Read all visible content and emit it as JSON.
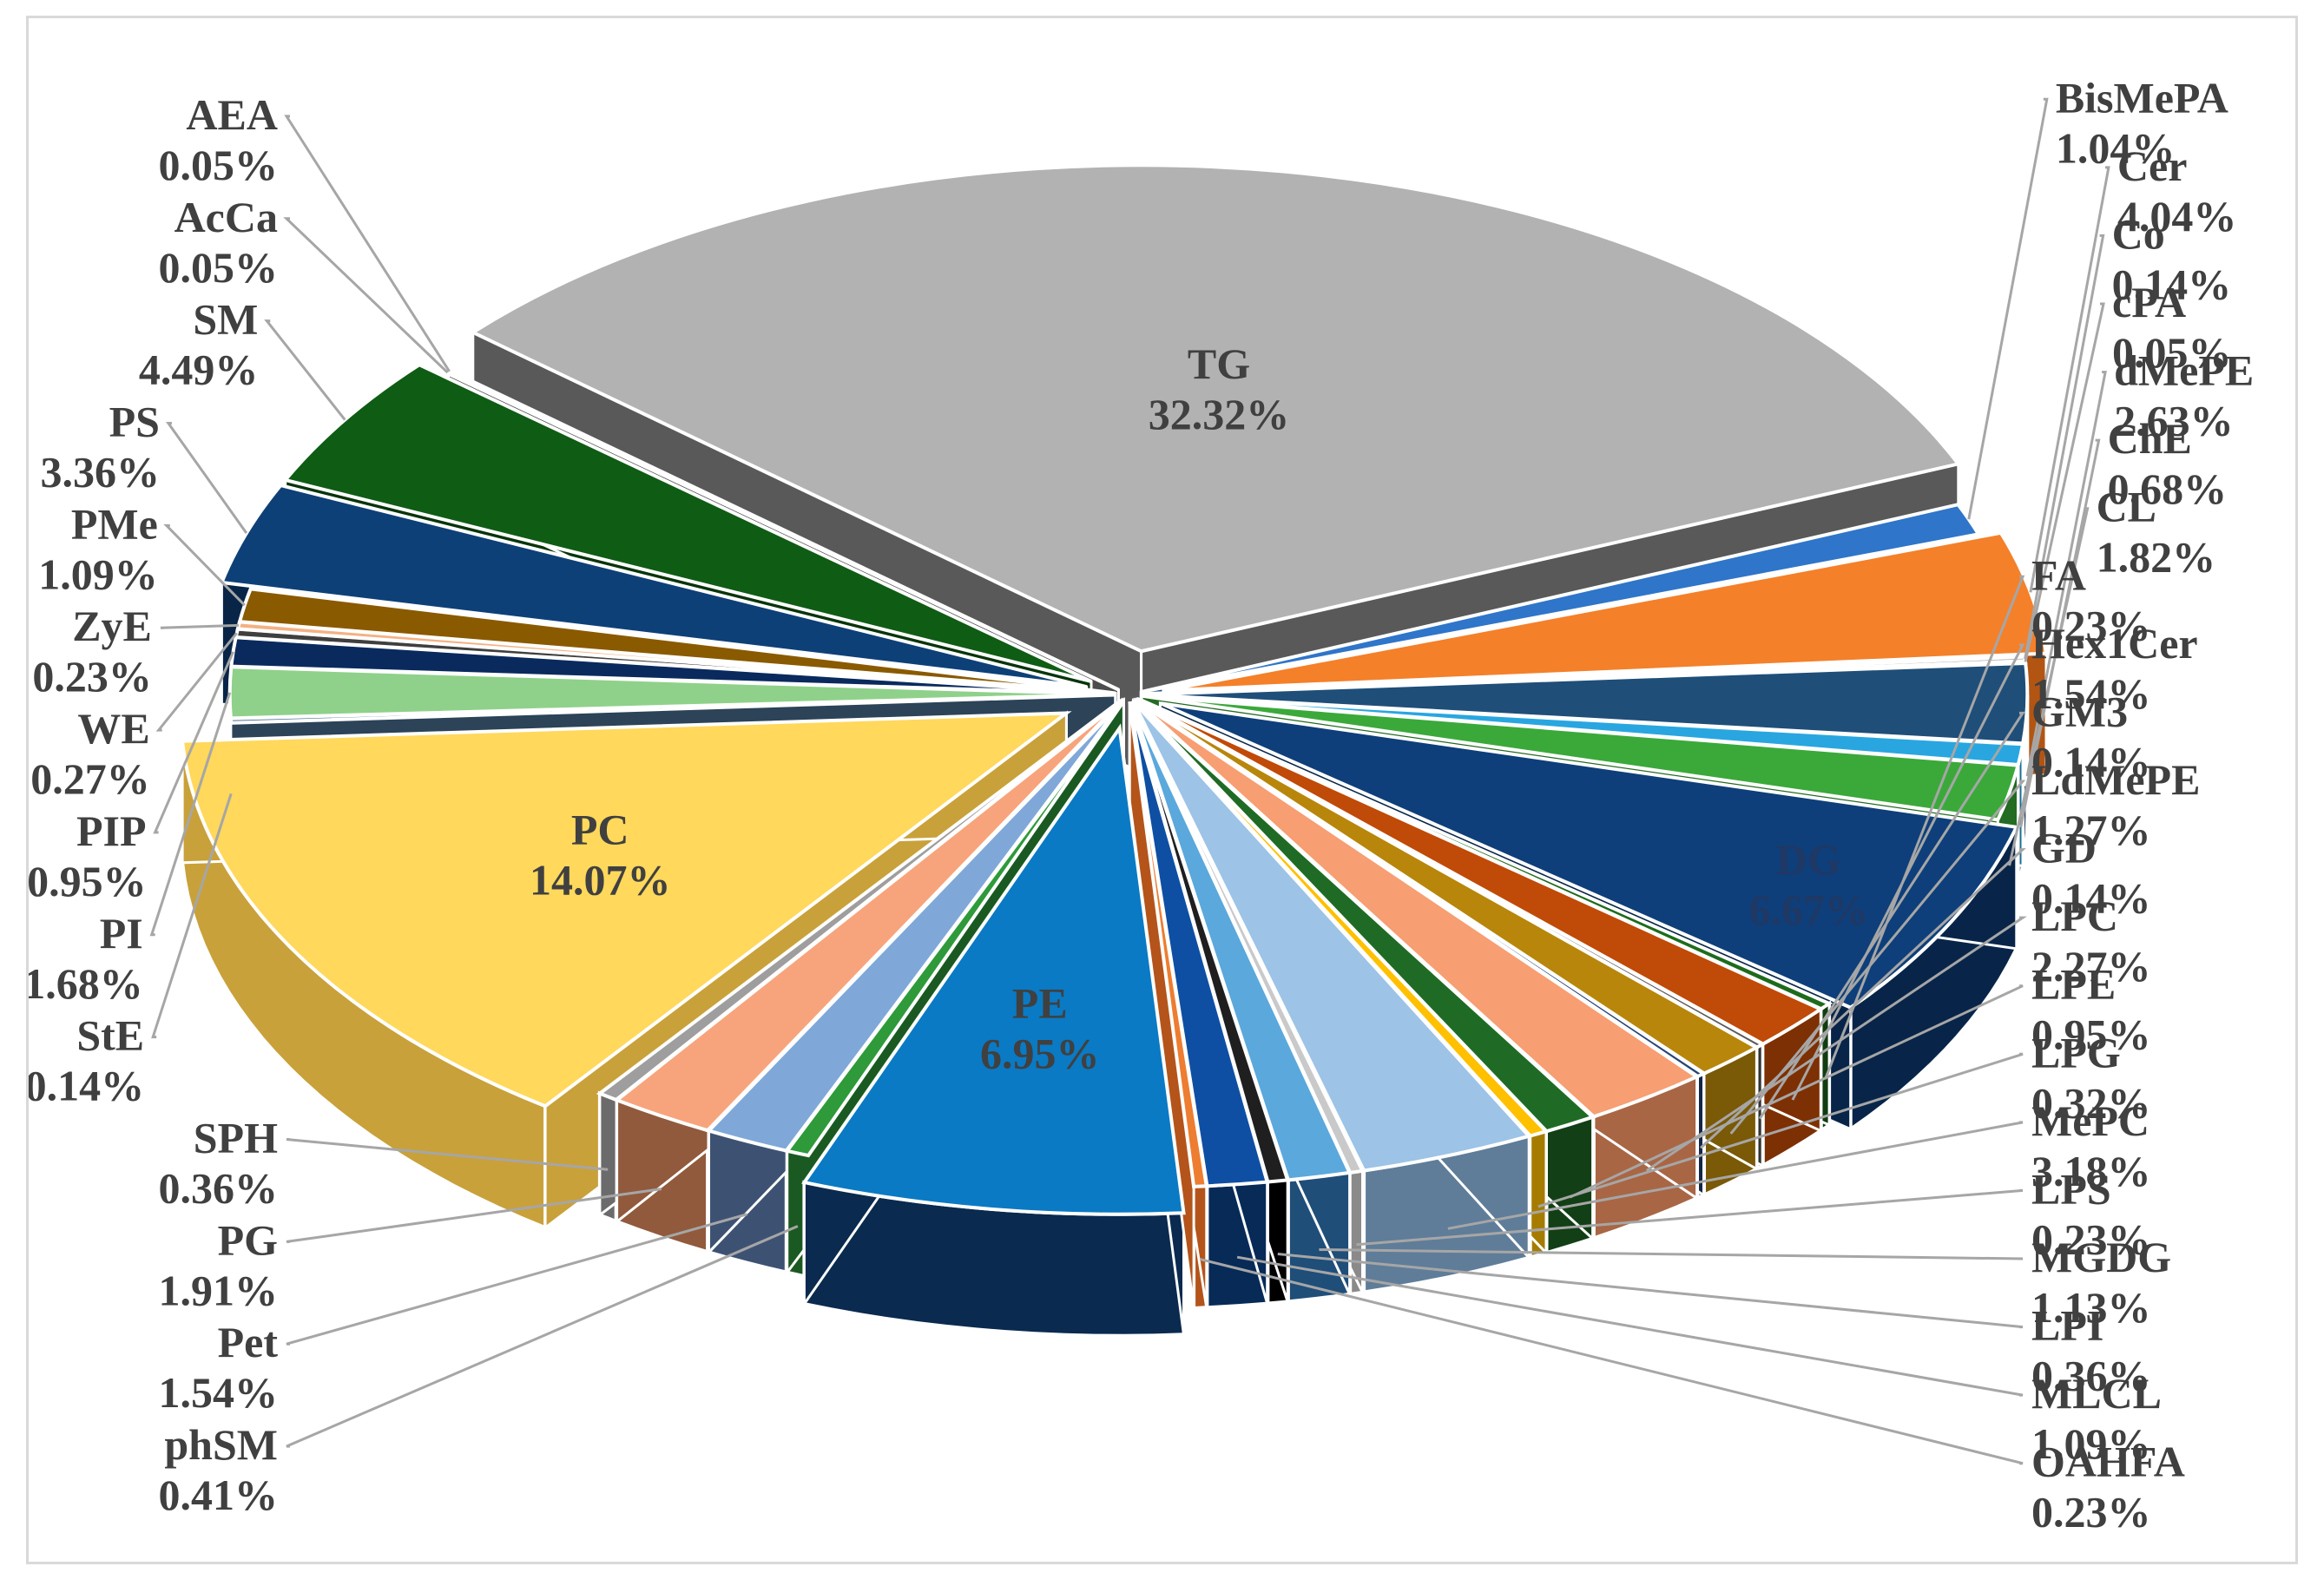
{
  "chart_data": {
    "type": "pie",
    "title": "",
    "unit": "%",
    "slices": [
      {
        "name": "TG",
        "value": 32.32,
        "pct": "32.32%",
        "color": "#b2b2b2",
        "side": "#595959"
      },
      {
        "name": "BisMePA",
        "value": 1.04,
        "pct": "1.04%",
        "color": "#2f75c9",
        "side": "#1f4e8a"
      },
      {
        "name": "Cer",
        "value": 4.04,
        "pct": "4.04%",
        "color": "#f4802a",
        "side": "#b25513"
      },
      {
        "name": "Co",
        "value": 0.14,
        "pct": "0.14%",
        "color": "#a5a5a5",
        "side": "#6e6e6e"
      },
      {
        "name": "cPA",
        "value": 0.05,
        "pct": "0.05%",
        "color": "#5b9bd5",
        "side": "#3b6d9c"
      },
      {
        "name": "dMePE",
        "value": 2.63,
        "pct": "2.63%",
        "color": "#1f4e79",
        "side": "#112c45"
      },
      {
        "name": "ChE",
        "value": 0.68,
        "pct": "0.68%",
        "color": "#29a6e0",
        "side": "#1a6f96"
      },
      {
        "name": "CL",
        "value": 1.82,
        "pct": "1.82%",
        "color": "#3aa93a",
        "side": "#246b24"
      },
      {
        "name": "DG",
        "value": 6.67,
        "pct": "6.67%",
        "color": "#0e3f7a",
        "side": "#082549"
      },
      {
        "name": "FA",
        "value": 0.23,
        "pct": "0.23%",
        "color": "#1e6b1e",
        "side": "#113d11"
      },
      {
        "name": "Hex1Cer",
        "value": 1.54,
        "pct": "1.54%",
        "color": "#c04a07",
        "side": "#7d3004"
      },
      {
        "name": "GM3",
        "value": 0.14,
        "pct": "0.14%",
        "color": "#595959",
        "side": "#333333"
      },
      {
        "name": "LdMePE",
        "value": 1.27,
        "pct": "1.27%",
        "color": "#b8860b",
        "side": "#7a5907"
      },
      {
        "name": "GD",
        "value": 0.14,
        "pct": "0.14%",
        "color": "#264478",
        "side": "#152747"
      },
      {
        "name": "LPC",
        "value": 2.27,
        "pct": "2.27%",
        "color": "#f79e72",
        "side": "#a96645"
      },
      {
        "name": "LPE",
        "value": 0.95,
        "pct": "0.95%",
        "color": "#1f6b25",
        "side": "#123f16"
      },
      {
        "name": "LPG",
        "value": 0.32,
        "pct": "0.32%",
        "color": "#ffc000",
        "side": "#a67c00"
      },
      {
        "name": "MePC",
        "value": 3.18,
        "pct": "3.18%",
        "color": "#9dc3e6",
        "side": "#5f7d99"
      },
      {
        "name": "LPS",
        "value": 0.23,
        "pct": "0.23%",
        "color": "#c9c9c9",
        "side": "#8a8a8a"
      },
      {
        "name": "MGDG",
        "value": 1.13,
        "pct": "1.13%",
        "color": "#5ba8dc",
        "side": "#1f4e79"
      },
      {
        "name": "LPI",
        "value": 0.36,
        "pct": "0.36%",
        "color": "#1f1f1f",
        "side": "#000000"
      },
      {
        "name": "MLCL",
        "value": 1.09,
        "pct": "1.09%",
        "color": "#0e4fa3",
        "side": "#072a57"
      },
      {
        "name": "OAHFA",
        "value": 0.23,
        "pct": "0.23%",
        "color": "#ed7d31",
        "side": "#b4541a"
      },
      {
        "name": "PE",
        "value": 6.95,
        "pct": "6.95%",
        "color": "#0a7ac4",
        "side": "#0a2a4f"
      },
      {
        "name": "phSM",
        "value": 0.41,
        "pct": "0.41%",
        "color": "#2e9a3a",
        "side": "#1a5a22"
      },
      {
        "name": "Pet",
        "value": 1.54,
        "pct": "1.54%",
        "color": "#7fa8d9",
        "side": "#3d5273"
      },
      {
        "name": "PG",
        "value": 1.91,
        "pct": "1.91%",
        "color": "#f7a47c",
        "side": "#915a3d"
      },
      {
        "name": "SPH",
        "value": 0.36,
        "pct": "0.36%",
        "color": "#9e9e9e",
        "side": "#6b6b6b"
      },
      {
        "name": "PC",
        "value": 14.07,
        "pct": "14.07%",
        "color": "#ffd85c",
        "side": "#c9a13a"
      },
      {
        "name": "StE",
        "value": 0.14,
        "pct": "0.14%",
        "color": "#4a6e8f",
        "side": "#2c4358"
      },
      {
        "name": "PI",
        "value": 1.68,
        "pct": "1.68%",
        "color": "#8fd18a",
        "side": "#5a9a55"
      },
      {
        "name": "PIP",
        "value": 0.95,
        "pct": "0.95%",
        "color": "#0a2a5e",
        "side": "#061938"
      },
      {
        "name": "WE",
        "value": 0.27,
        "pct": "0.27%",
        "color": "#3f3f3f",
        "side": "#1f1f1f"
      },
      {
        "name": "ZyE",
        "value": 0.23,
        "pct": "0.23%",
        "color": "#f4b183",
        "side": "#a5704c"
      },
      {
        "name": "PMe",
        "value": 1.09,
        "pct": "1.09%",
        "color": "#8a5a00",
        "side": "#5a3b00"
      },
      {
        "name": "PS",
        "value": 3.36,
        "pct": "3.36%",
        "color": "#0e4078",
        "side": "#082548"
      },
      {
        "name": "SM",
        "value": 4.49,
        "pct": "4.49%",
        "color": "#0f5c14",
        "side": "#08350b"
      },
      {
        "name": "AcCa",
        "value": 0.05,
        "pct": "0.05%",
        "color": "#7f7f7f",
        "side": "#4d4d4d"
      },
      {
        "name": "AEA",
        "value": 0.05,
        "pct": "0.05%",
        "color": "#a9d18e",
        "side": "#6d8a5a"
      }
    ]
  }
}
